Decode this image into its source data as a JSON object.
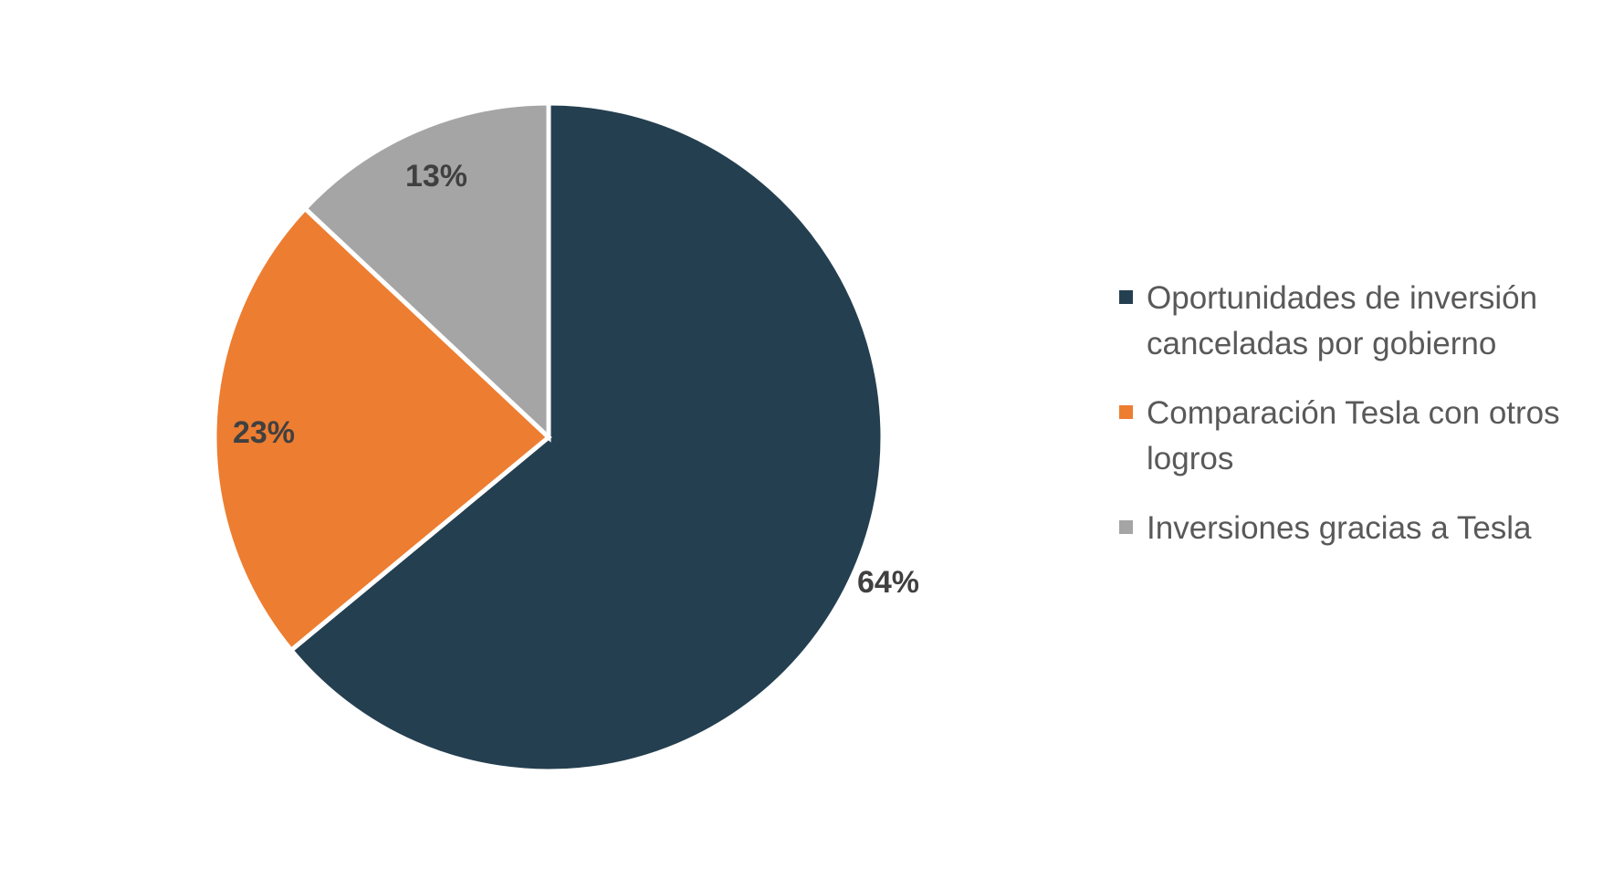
{
  "chart_data": {
    "type": "pie",
    "title": "",
    "start_angle_deg": 0,
    "direction": "clockwise",
    "slices": [
      {
        "name": "Oportunidades de inversión canceladas por gobierno",
        "value": 64,
        "label": "64%",
        "color": "#243F50"
      },
      {
        "name": "Comparación Tesla con otros logros",
        "value": 23,
        "label": "23%",
        "color": "#ED7D31"
      },
      {
        "name": "Inversiones gracias a Tesla",
        "value": 13,
        "label": "13%",
        "color": "#A5A5A5"
      }
    ],
    "legend_position": "right"
  }
}
